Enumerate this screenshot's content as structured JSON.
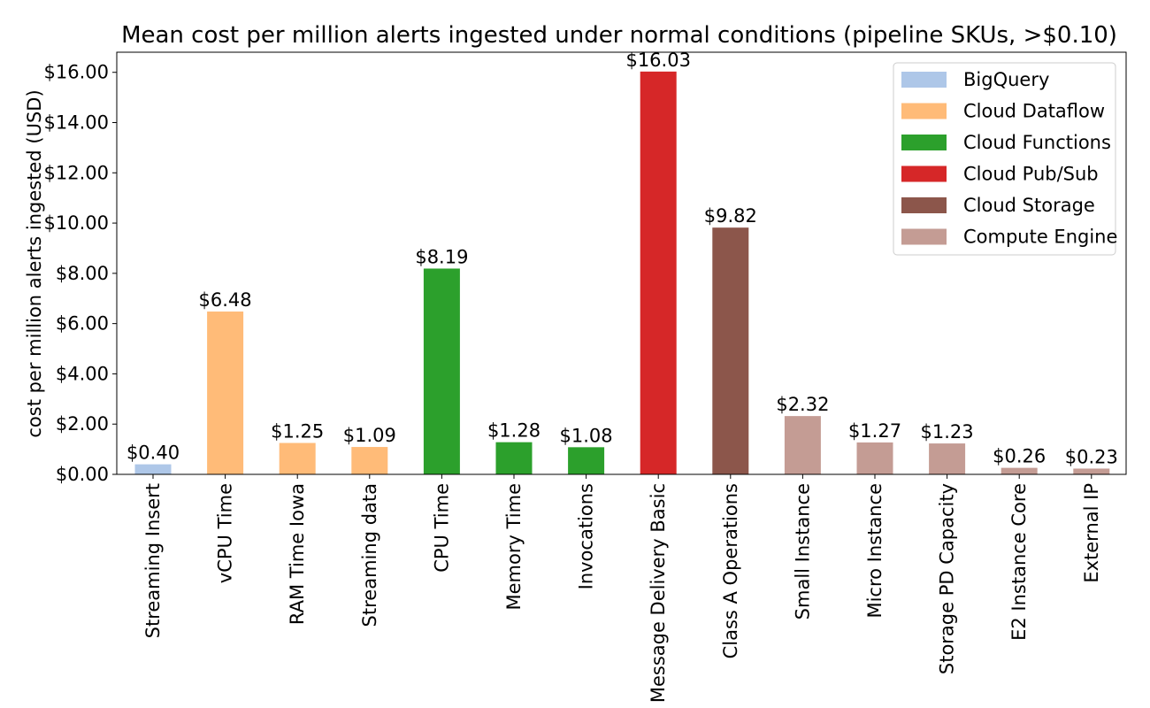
{
  "chart_data": {
    "type": "bar",
    "title": "Mean cost per million alerts ingested under normal conditions (pipeline SKUs, >$0.10)",
    "ylabel": "cost per million alerts ingested (USD)",
    "xlabel": "",
    "ylim": [
      0,
      16.8
    ],
    "yticks": [
      0,
      2,
      4,
      6,
      8,
      10,
      12,
      14,
      16
    ],
    "ytick_labels": [
      "$0.00",
      "$2.00",
      "$4.00",
      "$6.00",
      "$8.00",
      "$10.00",
      "$12.00",
      "$14.00",
      "$16.00"
    ],
    "grid": false,
    "legend_position": "top-right",
    "categories": [
      "Streaming Insert",
      "vCPU Time",
      "RAM Time Iowa",
      "Streaming data",
      "CPU Time",
      "Memory Time",
      "Invocations",
      "Message Delivery Basic",
      "Class A Operations",
      "Small Instance",
      "Micro Instance",
      "Storage PD Capacity",
      "E2 Instance Core",
      "External IP"
    ],
    "values": [
      0.4,
      6.48,
      1.25,
      1.09,
      8.19,
      1.28,
      1.08,
      16.03,
      9.82,
      2.32,
      1.27,
      1.23,
      0.26,
      0.23
    ],
    "value_labels": [
      "$0.40",
      "$6.48",
      "$1.25",
      "$1.09",
      "$8.19",
      "$1.28",
      "$1.08",
      "$16.03",
      "$9.82",
      "$2.32",
      "$1.27",
      "$1.23",
      "$0.26",
      "$0.23"
    ],
    "bar_service": [
      "BigQuery",
      "Cloud Dataflow",
      "Cloud Dataflow",
      "Cloud Dataflow",
      "Cloud Functions",
      "Cloud Functions",
      "Cloud Functions",
      "Cloud Pub/Sub",
      "Cloud Storage",
      "Compute Engine",
      "Compute Engine",
      "Compute Engine",
      "Compute Engine",
      "Compute Engine"
    ],
    "legend": [
      {
        "name": "BigQuery",
        "color": "#aec7e8"
      },
      {
        "name": "Cloud Dataflow",
        "color": "#ffbb78"
      },
      {
        "name": "Cloud Functions",
        "color": "#2ca02c"
      },
      {
        "name": "Cloud Pub/Sub",
        "color": "#d62728"
      },
      {
        "name": "Cloud Storage",
        "color": "#8c564b"
      },
      {
        "name": "Compute Engine",
        "color": "#c49c94"
      }
    ]
  }
}
